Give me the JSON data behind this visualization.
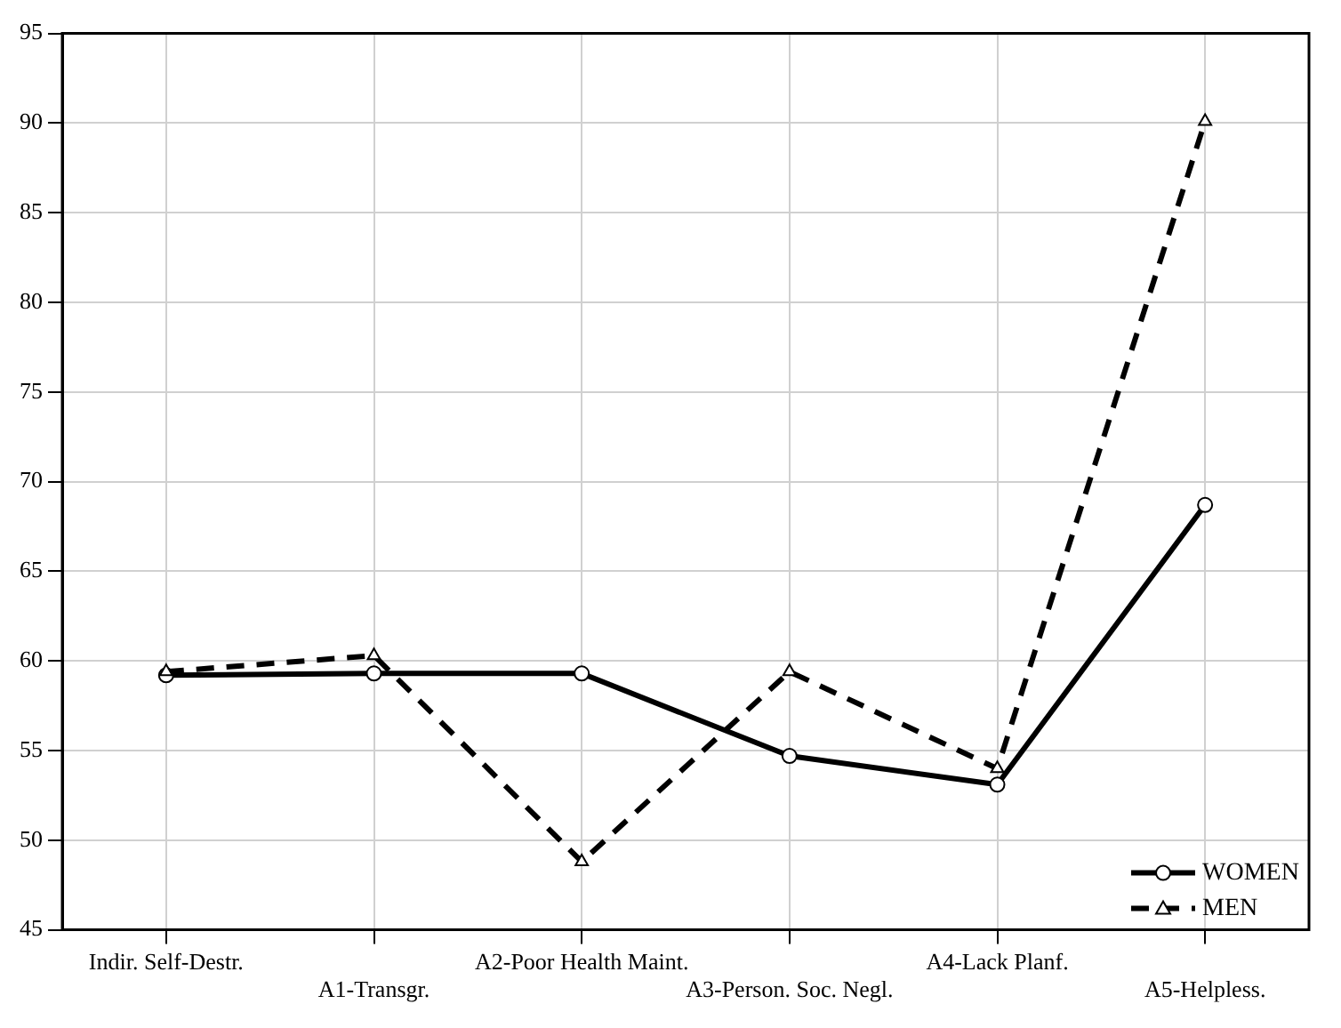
{
  "chart_data": {
    "type": "line",
    "categories": [
      "Indir. Self-Destr.",
      "A1-Transgr.",
      "A2-Poor Health Maint.",
      "A3-Person. Soc. Negl.",
      "A4-Lack Planf.",
      "A5-Helpless."
    ],
    "series": [
      {
        "name": "WOMEN",
        "color": "#000000",
        "marker": "circle",
        "line_style": "solid",
        "values": [
          59.2,
          59.3,
          59.3,
          54.7,
          53.1,
          68.7
        ]
      },
      {
        "name": "MEN",
        "color": "#000000",
        "marker": "triangle",
        "line_style": "dashed",
        "values": [
          59.4,
          60.3,
          48.8,
          59.4,
          54.0,
          90.1
        ]
      }
    ],
    "ylim": [
      45,
      95
    ],
    "yticks": [
      45,
      50,
      55,
      60,
      65,
      70,
      75,
      80,
      85,
      90,
      95
    ],
    "grid": true,
    "legend": "bottom right"
  }
}
